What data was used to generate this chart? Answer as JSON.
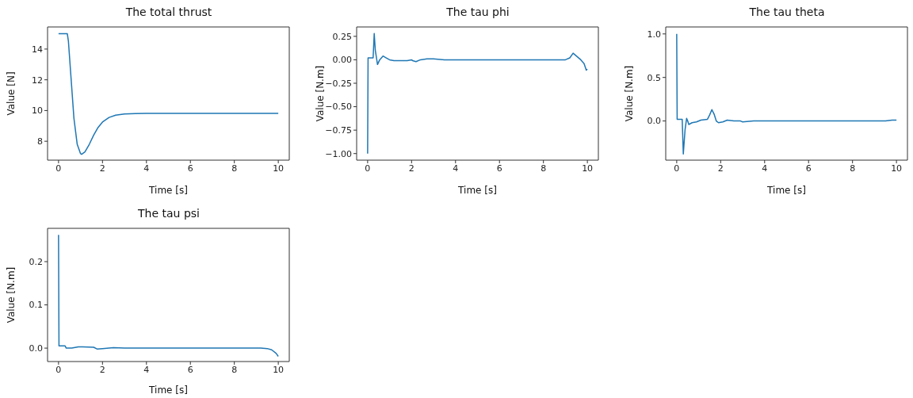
{
  "chart_data": [
    {
      "type": "line",
      "title": "The total thrust",
      "xlabel": "Time [s]",
      "ylabel": "Value [N]",
      "xlim": [
        -0.5,
        10.5
      ],
      "ylim": [
        6.77,
        15.44
      ],
      "xticks": [
        0,
        2,
        4,
        6,
        8,
        10
      ],
      "yticks": [
        8,
        10,
        12,
        14
      ],
      "series": [
        {
          "color": "#1f77b4",
          "x": [
            0,
            0.4,
            0.45,
            0.55,
            0.7,
            0.85,
            1.0,
            1.05,
            1.2,
            1.4,
            1.6,
            1.8,
            2.0,
            2.3,
            2.6,
            3.0,
            3.5,
            4,
            10
          ],
          "values": [
            15,
            15,
            14.5,
            12.5,
            9.5,
            7.8,
            7.2,
            7.15,
            7.3,
            7.8,
            8.4,
            8.9,
            9.25,
            9.55,
            9.7,
            9.77,
            9.8,
            9.81,
            9.81
          ]
        }
      ]
    },
    {
      "type": "line",
      "title": "The tau phi",
      "xlabel": "Time [s]",
      "ylabel": "Value [N.m]",
      "xlim": [
        -0.5,
        10.5
      ],
      "ylim": [
        -1.07,
        0.35
      ],
      "xticks": [
        0,
        2,
        4,
        6,
        8,
        10
      ],
      "yticks": [
        {
          "value": -1,
          "label": "−1.00"
        },
        {
          "value": -0.75,
          "label": "−0.75"
        },
        {
          "value": -0.5,
          "label": "−0.50"
        },
        {
          "value": -0.25,
          "label": "−0.25"
        },
        {
          "value": 0,
          "label": "0.00"
        },
        {
          "value": 0.25,
          "label": "0.25"
        }
      ],
      "series": [
        {
          "color": "#1f77b4",
          "x": [
            0,
            0.02,
            0.25,
            0.3,
            0.35,
            0.45,
            0.55,
            0.7,
            0.85,
            1.0,
            1.2,
            1.5,
            1.8,
            2.0,
            2.05,
            2.2,
            2.4,
            2.7,
            3.0,
            3.5,
            4,
            9.0,
            9.2,
            9.35,
            9.5,
            9.7,
            9.85,
            9.95,
            10
          ],
          "values": [
            -1.0,
            0.02,
            0.02,
            0.28,
            0.1,
            -0.05,
            0.0,
            0.04,
            0.02,
            0.0,
            -0.01,
            -0.01,
            -0.01,
            0.0,
            -0.01,
            -0.02,
            0.0,
            0.01,
            0.01,
            0.0,
            0,
            0,
            0.02,
            0.07,
            0.04,
            0.0,
            -0.04,
            -0.11,
            -0.1
          ]
        }
      ]
    },
    {
      "type": "line",
      "title": "The tau theta",
      "xlabel": "Time [s]",
      "ylabel": "Value [N.m]",
      "xlim": [
        -0.5,
        10.5
      ],
      "ylim": [
        -0.45,
        1.08
      ],
      "xticks": [
        0,
        2,
        4,
        6,
        8,
        10
      ],
      "yticks": [
        {
          "value": 0,
          "label": "0.0"
        },
        {
          "value": 0.5,
          "label": "0.5"
        },
        {
          "value": 1,
          "label": "1.0"
        }
      ],
      "series": [
        {
          "color": "#1f77b4",
          "x": [
            0,
            0.02,
            0.25,
            0.3,
            0.38,
            0.45,
            0.5,
            0.55,
            0.7,
            0.9,
            1.1,
            1.4,
            1.5,
            1.6,
            1.7,
            1.8,
            1.9,
            2.1,
            2.3,
            2.6,
            2.9,
            3.0,
            3.5,
            4,
            9.5,
            9.8,
            10
          ],
          "values": [
            1.0,
            0.02,
            0.02,
            -0.38,
            -0.1,
            0.03,
            0.0,
            -0.04,
            -0.02,
            -0.01,
            0.01,
            0.02,
            0.07,
            0.13,
            0.08,
            0.0,
            -0.02,
            -0.01,
            0.01,
            0.0,
            0.0,
            -0.01,
            0.0,
            0.0,
            0.0,
            0.01,
            0.01
          ]
        }
      ]
    },
    {
      "type": "line",
      "title": "The tau psi",
      "xlabel": "Time [s]",
      "ylabel": "Value [N.m]",
      "xlim": [
        -0.5,
        10.5
      ],
      "ylim": [
        -0.031,
        0.277
      ],
      "xticks": [
        0,
        2,
        4,
        6,
        8,
        10
      ],
      "yticks": [
        {
          "value": 0,
          "label": "0.0"
        },
        {
          "value": 0.1,
          "label": "0.1"
        },
        {
          "value": 0.2,
          "label": "0.2"
        }
      ],
      "series": [
        {
          "color": "#1f77b4",
          "x": [
            0,
            0.02,
            0.3,
            0.35,
            0.6,
            0.9,
            1.1,
            1.6,
            1.75,
            2.0,
            2.5,
            3,
            9.2,
            9.5,
            9.7,
            9.9,
            10
          ],
          "values": [
            0.262,
            0.005,
            0.005,
            0.0,
            0.0,
            0.003,
            0.003,
            0.002,
            -0.002,
            -0.001,
            0.001,
            0,
            0,
            -0.001,
            -0.004,
            -0.012,
            -0.019
          ]
        }
      ]
    }
  ]
}
